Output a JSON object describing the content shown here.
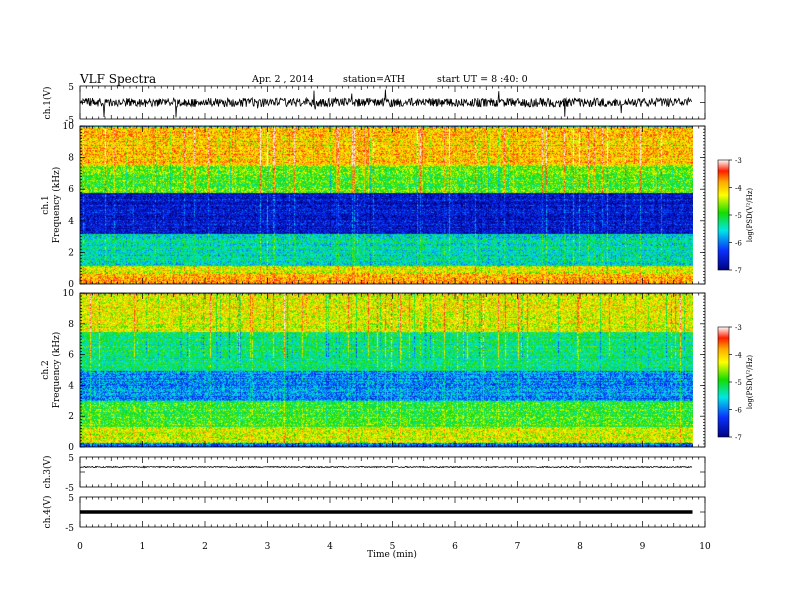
{
  "header": {
    "title": "VLF Spectra",
    "date": "Apr. 2 , 2014",
    "station": "station=ATH",
    "start": "start UT = 8 :40: 0"
  },
  "panels": {
    "ch1_wave": {
      "ylabel": "ch.1(V)",
      "ticks": [
        "5",
        "-5"
      ]
    },
    "ch1_spec": {
      "ylabel": "ch.1",
      "ylabel2": "Frequency (kHz)",
      "ticks": [
        "10",
        "8",
        "6",
        "4",
        "2",
        "0"
      ]
    },
    "ch2_spec": {
      "ylabel": "ch.2",
      "ylabel2": "Frequency (kHz)",
      "ticks": [
        "10",
        "8",
        "6",
        "4",
        "2",
        "0"
      ]
    },
    "ch3_wave": {
      "ylabel": "ch.3(V)",
      "ticks": [
        "5",
        "-5"
      ]
    },
    "ch4_wave": {
      "ylabel": "ch.4(V)",
      "ticks": [
        "5",
        "-5"
      ]
    }
  },
  "colorbars": [
    {
      "label": "log(PSD(V²/Hz)",
      "ticks": [
        "-3",
        "-4",
        "-5",
        "-6",
        "-7"
      ]
    },
    {
      "label": "log(PSD(V²/Hz)",
      "ticks": [
        "-3",
        "-4",
        "-5",
        "-6",
        "-7"
      ]
    }
  ],
  "xaxis": {
    "label": "Time (min)",
    "ticks": [
      "0",
      "1",
      "2",
      "3",
      "4",
      "5",
      "6",
      "7",
      "8",
      "9",
      "10"
    ]
  },
  "colors": {
    "red": "#ff1e00",
    "orange": "#ffaa00",
    "yellow": "#ffff00",
    "green": "#14dc00",
    "cyan": "#00e6e6",
    "blue": "#0a32ff",
    "navy": "#000082"
  },
  "chart_data": {
    "type": "heatmap",
    "title": "VLF Spectra",
    "xlabel": "Time (min)",
    "xlim": [
      0,
      10
    ],
    "data_extent_min": 9.8,
    "waveforms": [
      {
        "name": "ch.1(V)",
        "ylim": [
          -5,
          5
        ],
        "level": 0,
        "noise": "high"
      },
      {
        "name": "ch.3(V)",
        "ylim": [
          -5,
          5
        ],
        "level": 0,
        "noise": "low"
      },
      {
        "name": "ch.4(V)",
        "ylim": [
          -5,
          5
        ],
        "level": 0,
        "noise": "flat-thick"
      }
    ],
    "spectrograms": [
      {
        "name": "ch.1",
        "ylabel": "Frequency (kHz)",
        "ylim": [
          0,
          10
        ],
        "zlabel": "log(PSD(V²/Hz)",
        "zlim": [
          -7,
          -3
        ],
        "bands": [
          {
            "fmin": 0.0,
            "fmax": 0.7,
            "level": -4.2
          },
          {
            "fmin": 0.7,
            "fmax": 1.2,
            "level": -4.6
          },
          {
            "fmin": 1.2,
            "fmax": 3.2,
            "level": -5.6
          },
          {
            "fmin": 3.2,
            "fmax": 5.8,
            "level": -6.6
          },
          {
            "fmin": 5.8,
            "fmax": 7.5,
            "level": -5.0
          },
          {
            "fmin": 7.5,
            "fmax": 10.0,
            "level": -4.3
          }
        ]
      },
      {
        "name": "ch.2",
        "ylabel": "Frequency (kHz)",
        "ylim": [
          0,
          10
        ],
        "zlabel": "log(PSD(V²/Hz)",
        "zlim": [
          -7,
          -3
        ],
        "bands": [
          {
            "fmin": 0.0,
            "fmax": 0.3,
            "level": -6.2
          },
          {
            "fmin": 0.3,
            "fmax": 1.3,
            "level": -4.6
          },
          {
            "fmin": 1.3,
            "fmax": 3.0,
            "level": -5.1
          },
          {
            "fmin": 3.0,
            "fmax": 5.0,
            "level": -6.0
          },
          {
            "fmin": 5.0,
            "fmax": 7.5,
            "level": -5.4
          },
          {
            "fmin": 7.5,
            "fmax": 10.0,
            "level": -4.6
          }
        ]
      }
    ]
  }
}
